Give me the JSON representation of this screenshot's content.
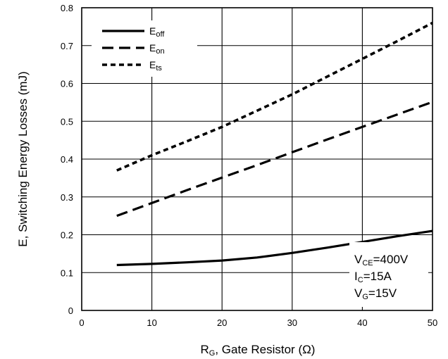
{
  "chart_data": {
    "type": "line",
    "xlabel": {
      "main": "R",
      "sub": "G",
      "rest": ", Gate Resistor (Ω)"
    },
    "ylabel": "E, Switching Energy Losses (mJ)",
    "xlim": [
      0,
      50
    ],
    "ylim": [
      0,
      0.8
    ],
    "xticks": [
      0,
      10,
      20,
      30,
      40,
      50
    ],
    "xtick_labels": [
      "0",
      "10",
      "20",
      "30",
      "40",
      "50"
    ],
    "yticks": [
      0,
      0.1,
      0.2,
      0.3,
      0.4,
      0.5,
      0.6,
      0.7,
      0.8
    ],
    "ytick_labels": [
      "0",
      "0.1",
      "0.2",
      "0.3",
      "0.4",
      "0.5",
      "0.6",
      "0.7",
      "0.8"
    ],
    "grid": true,
    "legend_position": "top-left",
    "series": [
      {
        "key": "eoff",
        "name_main": "E",
        "name_sub": "off",
        "dash": "solid",
        "color": "#000000",
        "x": [
          5,
          10,
          15,
          20,
          25,
          30,
          35,
          40,
          45,
          50
        ],
        "y": [
          0.12,
          0.123,
          0.127,
          0.132,
          0.14,
          0.152,
          0.166,
          0.181,
          0.196,
          0.21
        ]
      },
      {
        "key": "eon",
        "name_main": "E",
        "name_sub": "on",
        "dash": "long",
        "color": "#000000",
        "x": [
          5,
          10,
          15,
          20,
          25,
          30,
          35,
          40,
          45,
          50
        ],
        "y": [
          0.25,
          0.284,
          0.318,
          0.351,
          0.384,
          0.418,
          0.452,
          0.485,
          0.518,
          0.551
        ]
      },
      {
        "key": "ets",
        "name_main": "E",
        "name_sub": "ts",
        "dash": "short",
        "color": "#000000",
        "x": [
          5,
          10,
          15,
          20,
          25,
          30,
          35,
          40,
          45,
          50
        ],
        "y": [
          0.37,
          0.41,
          0.447,
          0.485,
          0.528,
          0.571,
          0.618,
          0.665,
          0.712,
          0.76
        ]
      }
    ],
    "conditions": [
      {
        "main": "V",
        "sub": "CE",
        "rest": "=400V"
      },
      {
        "main": "I",
        "sub": "C",
        "rest": "=15A"
      },
      {
        "main": "V",
        "sub": "G",
        "rest": "=15V"
      }
    ]
  }
}
